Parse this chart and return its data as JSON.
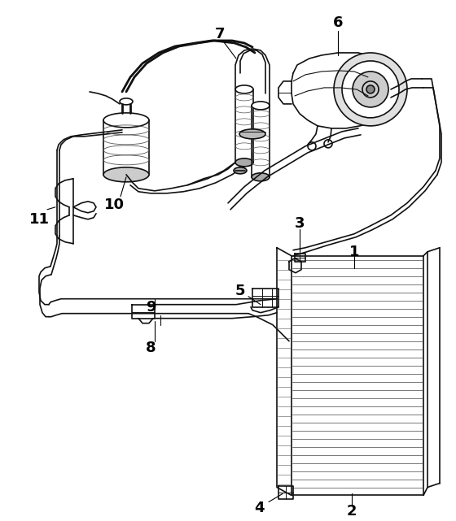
{
  "bg_color": "#ffffff",
  "line_color": "#111111",
  "lw": 1.2,
  "lw_thick": 2.0,
  "lw_thin": 0.7
}
